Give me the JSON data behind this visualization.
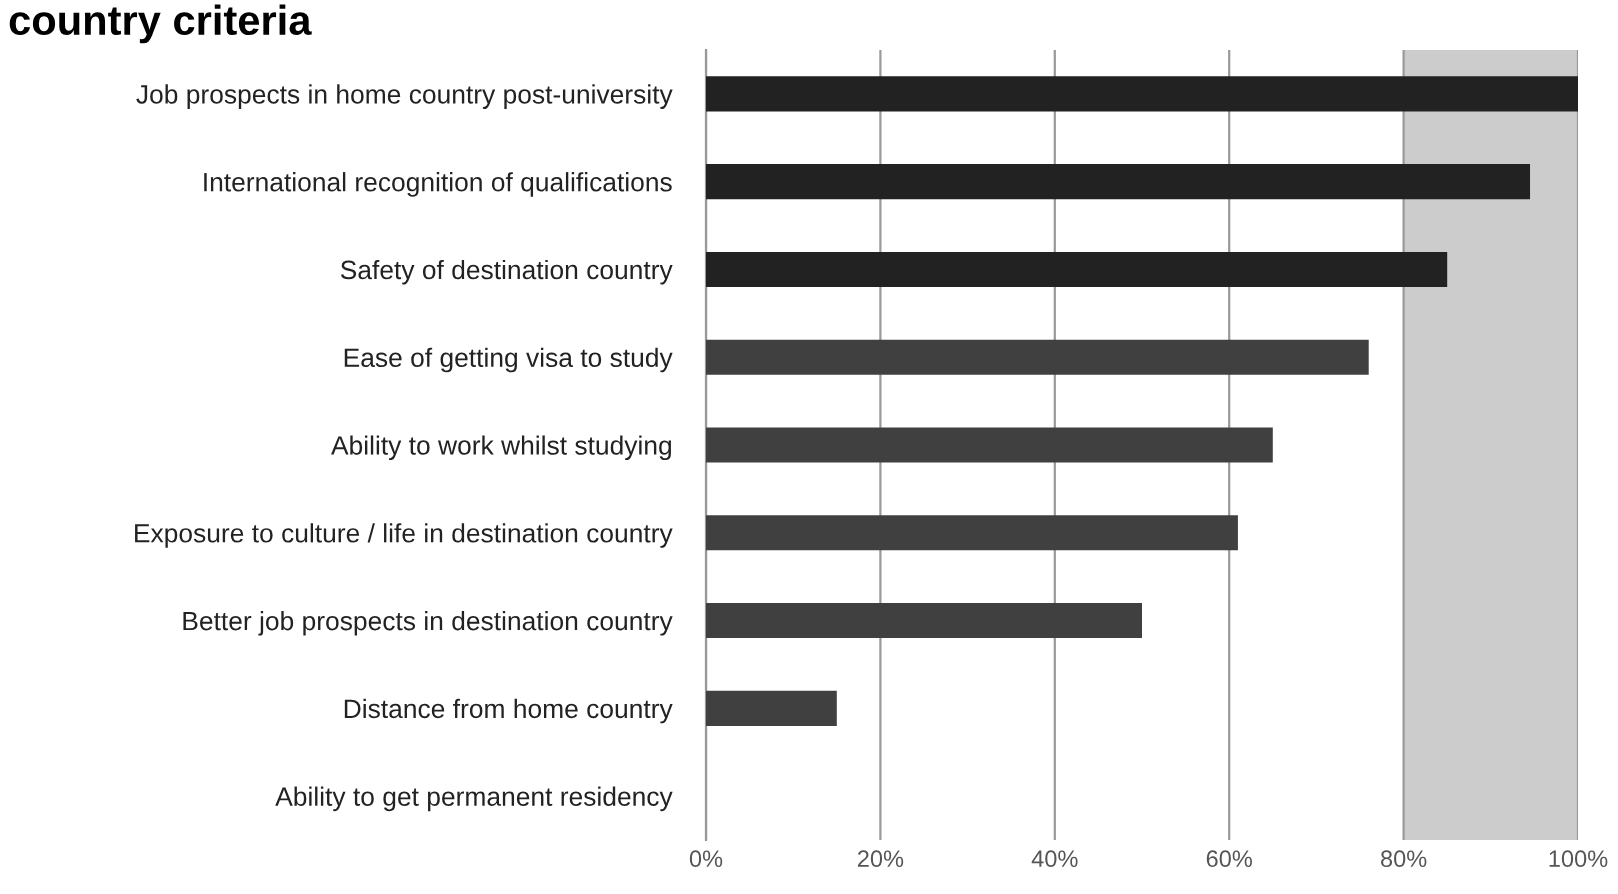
{
  "chart_data": {
    "type": "bar",
    "orientation": "horizontal",
    "title": "country criteria",
    "categories": [
      "Job prospects in home country post-university",
      "International recognition of qualifications",
      "Safety of destination country",
      "Ease of getting visa to study",
      "Ability to work whilst studying",
      "Exposure to culture / life in destination country",
      "Better job prospects in destination country",
      "Distance from home country",
      "Ability to get permanent residency"
    ],
    "values": [
      100,
      94.5,
      85,
      76,
      65,
      61,
      50,
      15,
      0
    ],
    "colors": [
      "#222222",
      "#222222",
      "#222222",
      "#404040",
      "#404040",
      "#404040",
      "#404040",
      "#404040",
      "#404040"
    ],
    "xlim": [
      0,
      100
    ],
    "xticks": [
      {
        "value": 0,
        "label": "0%"
      },
      {
        "value": 20,
        "label": "20%"
      },
      {
        "value": 40,
        "label": "40%"
      },
      {
        "value": 60,
        "label": "60%"
      },
      {
        "value": 80,
        "label": "80%"
      },
      {
        "value": 100,
        "label": "100%"
      }
    ],
    "bands": [
      {
        "axis": "x",
        "from": 80,
        "to": 100,
        "color": "#cccccc"
      }
    ],
    "grid": "x",
    "legend": false
  }
}
